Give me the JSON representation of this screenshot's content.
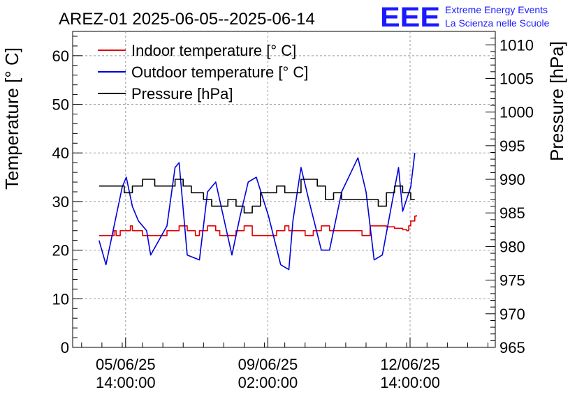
{
  "title": "AREZ-01 2025-06-05--2025-06-14",
  "logo": {
    "text": "EEE",
    "line1": "Extreme Energy Events",
    "line2": "La Scienza nelle Scuole",
    "color": "#1a1aff"
  },
  "chart_data": {
    "type": "line",
    "title": "AREZ-01 2025-06-05--2025-06-14",
    "ylabel": "Temperature [° C]",
    "y2label": "Pressure [hPa]",
    "ylim": [
      0,
      65
    ],
    "y2lim": [
      965,
      1012
    ],
    "yticks": [
      0,
      10,
      20,
      30,
      40,
      50,
      60
    ],
    "y2ticks": [
      965,
      970,
      975,
      980,
      985,
      990,
      995,
      1000,
      1005,
      1010
    ],
    "x_unit": "days since 2025-06-05 00:00",
    "xlim": [
      4.28,
      14.68
    ],
    "xticks": [
      {
        "x": 5.583,
        "line1": "05/06/25",
        "line2": "14:00:00"
      },
      {
        "x": 9.083,
        "line1": "09/06/25",
        "line2": "02:00:00"
      },
      {
        "x": 12.583,
        "line1": "12/06/25",
        "line2": "14:00:00"
      }
    ],
    "grid": true,
    "legend_position": "top-left",
    "series": [
      {
        "name": "Indoor temperature [° C]",
        "axis": "left",
        "color": "#e00000",
        "x": [
          4.93,
          5.2,
          5.3,
          5.35,
          5.45,
          5.5,
          5.7,
          5.75,
          5.85,
          5.9,
          6.0,
          6.1,
          6.3,
          6.6,
          6.8,
          6.9,
          7.1,
          7.3,
          7.4,
          7.6,
          7.8,
          7.9,
          8.1,
          8.3,
          8.5,
          8.7,
          8.9,
          9.0,
          9.3,
          9.5,
          9.6,
          9.8,
          10.0,
          10.2,
          10.4,
          10.6,
          10.8,
          11.0,
          11.2,
          11.4,
          11.6,
          11.8,
          12.0,
          12.2,
          12.4,
          12.5,
          12.55,
          12.6,
          12.7,
          12.74
        ],
        "y": [
          23,
          23,
          24,
          23,
          24,
          24,
          25,
          24,
          24,
          24,
          23,
          23,
          23,
          24,
          24,
          25,
          24,
          23,
          24,
          25,
          24,
          23,
          23,
          24,
          25,
          23,
          23,
          23,
          24,
          25,
          24,
          24,
          23,
          24,
          25,
          24,
          24,
          24,
          24,
          23,
          25,
          25,
          24.8,
          24.5,
          24.2,
          24,
          25,
          26,
          27,
          27.2
        ]
      },
      {
        "name": "Outdoor temperature [° C]",
        "axis": "left",
        "color": "#0000dd",
        "x": [
          4.93,
          5.1,
          5.5,
          5.6,
          5.75,
          5.9,
          6.1,
          6.2,
          6.6,
          6.7,
          6.8,
          6.9,
          7.1,
          7.4,
          7.6,
          7.8,
          8.2,
          8.4,
          8.6,
          8.8,
          9.1,
          9.4,
          9.6,
          9.7,
          9.9,
          10.1,
          10.4,
          10.6,
          10.9,
          11.3,
          11.5,
          11.7,
          11.9,
          12.3,
          12.4,
          12.6,
          12.7
        ],
        "y": [
          22,
          17,
          33,
          35,
          29,
          26,
          24,
          19,
          25,
          31,
          37,
          38,
          19,
          18,
          32,
          34,
          19,
          27,
          34,
          35,
          27,
          17,
          16,
          26,
          37,
          30,
          20,
          20,
          32,
          39,
          32,
          18,
          19,
          37,
          28,
          33,
          40
        ]
      },
      {
        "name": "Pressure [hPa]",
        "axis": "right",
        "color": "#000000",
        "x": [
          4.93,
          5.3,
          5.55,
          5.75,
          6.0,
          6.3,
          6.6,
          6.8,
          7.0,
          7.2,
          7.5,
          7.7,
          7.9,
          8.1,
          8.3,
          8.5,
          8.7,
          8.9,
          9.1,
          9.3,
          9.5,
          9.7,
          9.9,
          10.1,
          10.3,
          10.5,
          10.7,
          10.9,
          11.0,
          11.2,
          11.4,
          11.6,
          11.8,
          12.0,
          12.2,
          12.3,
          12.4,
          12.5,
          12.6,
          12.7
        ],
        "y": [
          989,
          989,
          988,
          989,
          990,
          989,
          989,
          990,
          989,
          988,
          987,
          986,
          986,
          987,
          986,
          985,
          986,
          988,
          988,
          989,
          988,
          988,
          990,
          990,
          989,
          987,
          988,
          987,
          987,
          987,
          987,
          987,
          986,
          988,
          989,
          989,
          988,
          988,
          987,
          987
        ]
      }
    ]
  }
}
